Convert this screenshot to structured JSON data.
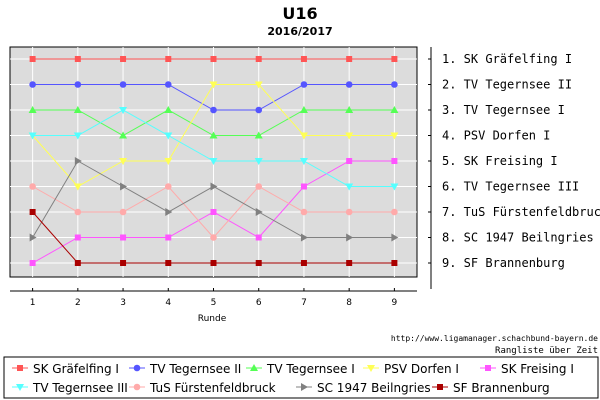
{
  "chart_data": {
    "type": "line",
    "title": "U16",
    "subtitle": "2016/2017",
    "xlabel": "Runde",
    "ylabel": "",
    "x": [
      1,
      2,
      3,
      4,
      5,
      6,
      7,
      8,
      9
    ],
    "ylim": [
      1,
      9
    ],
    "y_inverted": true,
    "grid": true,
    "legend": "bottom",
    "source_url": "http://www.ligamanager.schachbund-bayern.de",
    "caption": "Rangliste über Zeit",
    "rank_labels": [
      "1. SK Gräfelfing I",
      "2. TV Tegernsee II",
      "3. TV Tegernsee I",
      "4. PSV Dorfen I",
      "5. SK Freising I",
      "6. TV Tegernsee III",
      "7. TuS Fürstenfeldbruck",
      "8. SC 1947 Beilngries",
      "9. SF Brannenburg"
    ],
    "series": [
      {
        "name": "SK Gräfelfing I",
        "color": "#ff5555",
        "marker": "square",
        "values": [
          1,
          1,
          1,
          1,
          1,
          1,
          1,
          1,
          1
        ]
      },
      {
        "name": "TV Tegernsee II",
        "color": "#5555ff",
        "marker": "circle",
        "values": [
          2,
          2,
          2,
          2,
          3,
          3,
          2,
          2,
          2
        ]
      },
      {
        "name": "TV Tegernsee I",
        "color": "#55ff55",
        "marker": "triangle-up",
        "values": [
          3,
          3,
          4,
          3,
          4,
          4,
          3,
          3,
          3
        ]
      },
      {
        "name": "PSV Dorfen I",
        "color": "#ffff55",
        "marker": "triangle-down",
        "values": [
          4,
          6,
          5,
          5,
          2,
          2,
          4,
          4,
          4
        ]
      },
      {
        "name": "SK Freising I",
        "color": "#ff55ff",
        "marker": "square",
        "values": [
          9,
          8,
          8,
          8,
          7,
          8,
          6,
          5,
          5
        ]
      },
      {
        "name": "TV Tegernsee III",
        "color": "#55ffff",
        "marker": "triangle-down",
        "values": [
          4,
          4,
          3,
          4,
          5,
          5,
          5,
          6,
          6
        ]
      },
      {
        "name": "TuS Fürstenfeldbruck",
        "color": "#ffaaaa",
        "marker": "circle",
        "values": [
          6,
          7,
          7,
          6,
          8,
          6,
          7,
          7,
          7
        ]
      },
      {
        "name": "SC 1947 Beilngries",
        "color": "#808080",
        "marker": "triangle-right",
        "values": [
          8,
          5,
          6,
          7,
          6,
          7,
          8,
          8,
          8
        ]
      },
      {
        "name": "SF Brannenburg",
        "color": "#aa0000",
        "marker": "square",
        "values": [
          7,
          9,
          9,
          9,
          9,
          9,
          9,
          9,
          9
        ]
      }
    ]
  }
}
